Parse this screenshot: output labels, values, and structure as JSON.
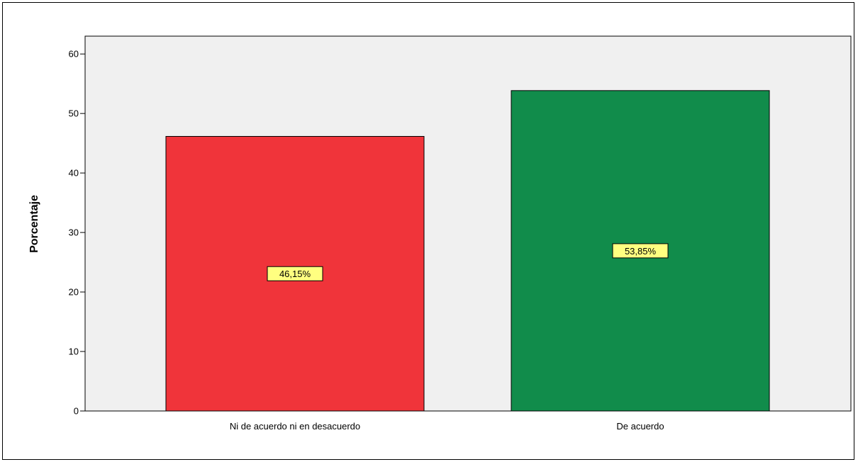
{
  "chart_data": {
    "type": "bar",
    "categories": [
      "Ni de acuerdo ni en desacuerdo",
      "De acuerdo"
    ],
    "values": [
      46.15,
      53.85
    ],
    "data_labels": [
      "46,15%",
      "53,85%"
    ],
    "bar_colors": [
      "#f0343a",
      "#118c4b"
    ],
    "ylabel": "Porcentaje",
    "xlabel": "",
    "ylim": [
      0,
      63
    ],
    "yticks": [
      0,
      10,
      20,
      30,
      40,
      50,
      60
    ],
    "plot_background": "#f0f0f0",
    "label_background": "#ffff80",
    "grid": false
  }
}
